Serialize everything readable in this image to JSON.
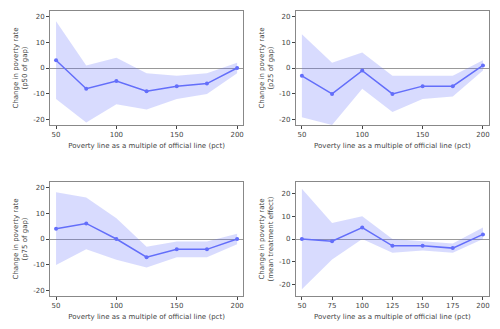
{
  "chart_data": [
    {
      "type": "line",
      "xlabel": "Poverty line as a multiple of official line (pct)",
      "ylabel": "Change in poverty rate (p50 of gap)",
      "x": [
        50,
        75,
        100,
        125,
        150,
        175,
        200
      ],
      "values": [
        3,
        -8,
        -5,
        -9,
        -7,
        -6,
        0
      ],
      "upper": [
        18,
        1,
        4,
        -2,
        -3,
        -2,
        2
      ],
      "lower": [
        -12,
        -21,
        -14,
        -16,
        -12,
        -10,
        -2
      ],
      "xlim": [
        45,
        205
      ],
      "xticks": [
        50,
        100,
        150,
        200
      ],
      "ylim": [
        -22,
        22
      ],
      "yticks": [
        -20,
        -10,
        0,
        10,
        20
      ],
      "grid": false,
      "marker": "circle"
    },
    {
      "type": "line",
      "xlabel": "Poverty line as a multiple of official line (pct)",
      "ylabel": "Change in poverty rate (p25 of gap)",
      "x": [
        50,
        75,
        100,
        125,
        150,
        175,
        200
      ],
      "values": [
        -3,
        -10,
        -1,
        -10,
        -7,
        -7,
        1
      ],
      "upper": [
        13,
        2,
        6,
        -3,
        -3,
        -3,
        3
      ],
      "lower": [
        -19,
        -22,
        -8,
        -17,
        -12,
        -11,
        -1
      ],
      "xlim": [
        45,
        205
      ],
      "xticks": [
        50,
        100,
        150,
        200
      ],
      "ylim": [
        -22,
        22
      ],
      "yticks": [
        -20,
        -10,
        0,
        10,
        20
      ],
      "grid": false,
      "marker": "circle"
    },
    {
      "type": "line",
      "xlabel": "Poverty line as a multiple of official line (pct)",
      "ylabel": "Change in poverty rate (p75 of gap)",
      "x": [
        50,
        75,
        100,
        125,
        150,
        175,
        200
      ],
      "values": [
        4,
        6,
        0,
        -7,
        -4,
        -4,
        0
      ],
      "upper": [
        18,
        16,
        8,
        -3,
        -1,
        -1,
        2
      ],
      "lower": [
        -10,
        -4,
        -8,
        -11,
        -7,
        -7,
        -2
      ],
      "xlim": [
        45,
        205
      ],
      "xticks": [
        50,
        100,
        150,
        200
      ],
      "ylim": [
        -22,
        22
      ],
      "yticks": [
        -20,
        -10,
        0,
        10,
        20
      ],
      "grid": false,
      "marker": "circle"
    },
    {
      "type": "line",
      "xlabel": "Poverty line as a multiple of official line (pct)",
      "ylabel": "Change in poverty rate (mean treatment effect)",
      "x": [
        50,
        75,
        100,
        125,
        150,
        175,
        200
      ],
      "values": [
        0,
        -1,
        5,
        -3,
        -3,
        -4,
        2
      ],
      "upper": [
        22,
        7,
        10,
        0,
        -1,
        -2,
        5
      ],
      "lower": [
        -22,
        -9,
        0,
        -6,
        -5,
        -6,
        0
      ],
      "xlim": [
        45,
        205
      ],
      "xticks": [
        50,
        75,
        100,
        125,
        150,
        175,
        200
      ],
      "ylim": [
        -25,
        25
      ],
      "yticks": [
        -20,
        -10,
        0,
        10,
        20
      ],
      "grid": false,
      "marker": "circle"
    }
  ]
}
